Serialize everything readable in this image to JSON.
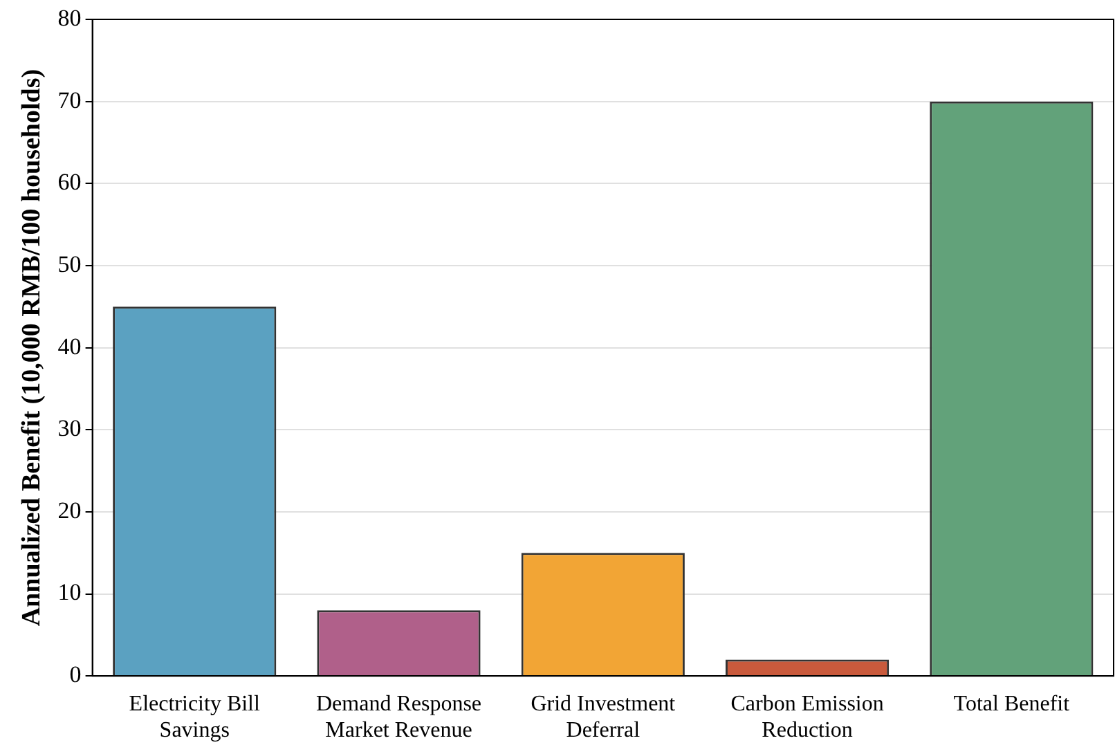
{
  "chart_data": {
    "type": "bar",
    "ylabel": "Annualized Benefit (10,000 RMB/100 households)",
    "categories": [
      "Electricity Bill\nSavings",
      "Demand Response\nMarket Revenue",
      "Grid Investment\nDeferral",
      "Carbon Emission\nReduction",
      "Total Benefit"
    ],
    "values": [
      45,
      8,
      15,
      2,
      70
    ],
    "colors": [
      "#5ba1c1",
      "#b0608a",
      "#f2a535",
      "#c95a3c",
      "#62a27a"
    ],
    "ylim": [
      0,
      80
    ],
    "yticks": [
      0,
      10,
      20,
      30,
      40,
      50,
      60,
      70,
      80
    ],
    "grid": "y",
    "legend": false
  }
}
